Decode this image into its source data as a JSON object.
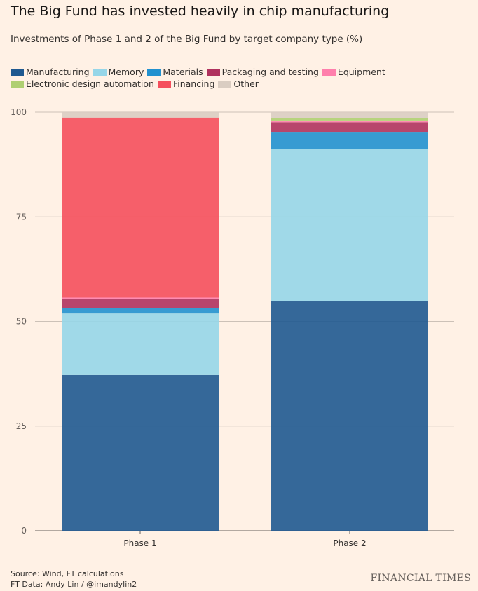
{
  "chart_data": {
    "type": "bar",
    "stacked": true,
    "title": "The Big Fund has invested heavily in chip manufacturing",
    "subtitle": "Investments of Phase 1 and 2 of the Big Fund by target company type (%)",
    "categories": [
      "Phase 1",
      "Phase 2"
    ],
    "series": [
      {
        "name": "Manufacturing",
        "color": "#1f5990",
        "values": [
          37.2,
          54.8
        ]
      },
      {
        "name": "Memory",
        "color": "#96d6e8",
        "values": [
          14.7,
          36.4
        ]
      },
      {
        "name": "Materials",
        "color": "#2191cf",
        "values": [
          1.3,
          4.1
        ]
      },
      {
        "name": "Packaging and testing",
        "color": "#b0325e",
        "values": [
          2.2,
          2.3
        ]
      },
      {
        "name": "Equipment",
        "color": "#ff7fac",
        "values": [
          0.3,
          0.4
        ]
      },
      {
        "name": "Electronic design automation",
        "color": "#afcf72",
        "values": [
          0,
          0.5
        ]
      },
      {
        "name": "Financing",
        "color": "#f54f5c",
        "values": [
          43.0,
          0
        ]
      },
      {
        "name": "Other",
        "color": "#dacdc2",
        "values": [
          1.3,
          1.5
        ]
      }
    ],
    "yticks": [
      "0",
      "25",
      "50",
      "75",
      "100"
    ],
    "ylim": [
      0,
      100
    ],
    "grid": true,
    "legend": "top-left",
    "xlabel": "",
    "ylabel": ""
  },
  "footer": {
    "source": "Source: Wind, FT calculations",
    "credit": "FT Data: Andy Lin / @imandylin2",
    "brand": "FINANCIAL TIMES"
  }
}
